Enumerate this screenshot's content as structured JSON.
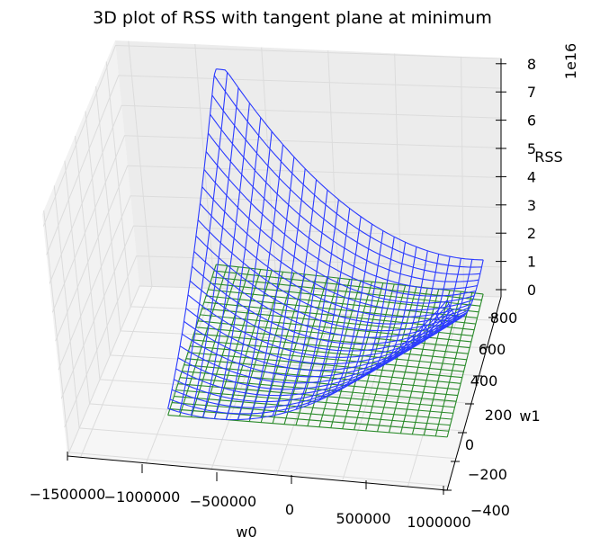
{
  "chart_data": {
    "type": "surface3d",
    "title": "3D plot of RSS with tangent plane at minimum",
    "xlabel": "w0",
    "ylabel": "w1",
    "zlabel": "RSS",
    "z_multiplier_label": "1e16",
    "x_ticks": [
      "−1500000",
      "−1000000",
      "−500000",
      "0",
      "500000",
      "1000000"
    ],
    "y_ticks": [
      "−400",
      "−200",
      "0",
      "200",
      "400",
      "600",
      "800"
    ],
    "z_ticks": [
      "0",
      "1",
      "2",
      "3",
      "4",
      "5",
      "6",
      "7",
      "8"
    ],
    "xlim": [
      -1600000,
      1000000
    ],
    "ylim": [
      -400,
      900
    ],
    "zlim": [
      0,
      8
    ],
    "grid": true,
    "series": [
      {
        "name": "",
        "kind": "wireframe-surface",
        "color": "#2b3bff",
        "x_range": [
          -1450000,
          950000
        ],
        "y_range": [
          -350,
          850
        ],
        "z_min_at": [
          0,
          0
        ],
        "z_max": 7.4
      },
      {
        "name": "",
        "kind": "wireframe-plane",
        "color": "#2a8a2a",
        "x_range": [
          -1450000,
          950000
        ],
        "y_range": [
          -350,
          850
        ],
        "z": 0
      }
    ]
  }
}
